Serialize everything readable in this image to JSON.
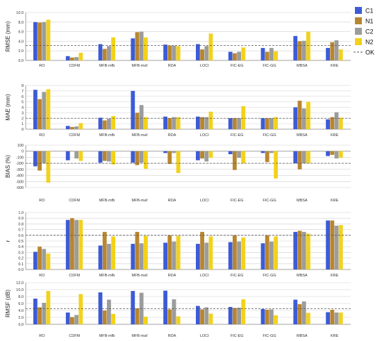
{
  "colors": {
    "C1": "#3d5bd6",
    "N1": "#b8862f",
    "C2": "#9c9c9c",
    "N2": "#f2d21a",
    "OK": "#555555",
    "grid": "#cfcfcf",
    "axis": "#888888"
  },
  "legend": {
    "items": [
      {
        "label": "C1",
        "key": "C1",
        "kind": "box"
      },
      {
        "label": "N1",
        "key": "N1",
        "kind": "box"
      },
      {
        "label": "C2",
        "key": "C2",
        "kind": "box"
      },
      {
        "label": "N2",
        "key": "N2",
        "kind": "box"
      },
      {
        "label": "OK",
        "key": "OK",
        "kind": "dash"
      }
    ]
  },
  "chart_data": [
    {
      "type": "bar",
      "ylabel": "RMSE (mm)",
      "ylim": [
        0,
        10
      ],
      "yticks": [
        0,
        2,
        4,
        6,
        8,
        10
      ],
      "ytick_labels": [
        "0.0",
        "2.0",
        "4.0",
        "6.0",
        "8.0",
        "10.0"
      ],
      "grid": true,
      "ok_line": 3.1,
      "categories": [
        "RO",
        "CDFM",
        "MFB-mfb",
        "MFB-maf",
        "RDA",
        "LOCI",
        "FIC-EG",
        "FIC-GG",
        "MBSA",
        "KRE"
      ],
      "series": [
        {
          "name": "C1",
          "values": [
            8.0,
            0.9,
            3.4,
            4.6,
            3.3,
            3.4,
            1.8,
            2.6,
            5.1,
            2.6
          ]
        },
        {
          "name": "N1",
          "values": [
            7.9,
            0.6,
            2.4,
            5.9,
            3.1,
            2.3,
            1.5,
            1.8,
            4.0,
            3.8
          ]
        },
        {
          "name": "C2",
          "values": [
            8.0,
            0.7,
            3.0,
            6.0,
            3.1,
            3.0,
            1.8,
            2.6,
            4.1,
            4.2
          ]
        },
        {
          "name": "N2",
          "values": [
            8.5,
            1.6,
            4.8,
            4.8,
            3.0,
            5.6,
            2.7,
            1.9,
            6.0,
            2.3
          ]
        }
      ]
    },
    {
      "type": "bar",
      "ylabel": "MAE (mm)",
      "ylim": [
        0,
        8
      ],
      "yticks": [
        0,
        1,
        2,
        3,
        4,
        5,
        6,
        7,
        8
      ],
      "ytick_labels": [
        "0",
        "1",
        "2",
        "3",
        "4",
        "5",
        "6",
        "7",
        "8"
      ],
      "grid": true,
      "ok_line": 2.0,
      "categories": [
        "RO",
        "CDFM",
        "MFB-mfb",
        "MFB-maf",
        "RDA",
        "LOCI",
        "FIC-EG",
        "FIC-GG",
        "MBSA",
        "KRE"
      ],
      "series": [
        {
          "name": "C1",
          "values": [
            7.2,
            0.6,
            2.1,
            7.0,
            2.3,
            2.3,
            2.0,
            2.0,
            4.0,
            1.8
          ]
        },
        {
          "name": "N1",
          "values": [
            5.5,
            0.4,
            1.6,
            3.0,
            2.0,
            2.2,
            2.0,
            2.0,
            5.2,
            2.2
          ]
        },
        {
          "name": "C2",
          "values": [
            6.8,
            0.5,
            1.9,
            4.4,
            2.2,
            2.2,
            2.0,
            2.0,
            3.8,
            3.1
          ]
        },
        {
          "name": "N2",
          "values": [
            7.3,
            1.1,
            2.4,
            2.2,
            2.2,
            3.2,
            4.2,
            2.2,
            5.0,
            2.1
          ]
        }
      ]
    },
    {
      "type": "bar",
      "ylabel": "BIAS (%)",
      "ylim": [
        -600,
        100
      ],
      "yticks": [
        100,
        0,
        -100,
        -200,
        -300,
        -400,
        -500,
        -600
      ],
      "ytick_labels": [
        "100",
        "0",
        "-100",
        "-200",
        "-300",
        "-400",
        "-500",
        "-600"
      ],
      "grid": true,
      "ok_line": -200,
      "categories": [
        "RO",
        "CDFM",
        "MFB-mfb",
        "MFB-maf",
        "RDA",
        "LOCI",
        "FIC-EG",
        "FIC-GG",
        "MBSA",
        "KRE"
      ],
      "series": [
        {
          "name": "C1",
          "values": [
            -250,
            -150,
            -190,
            -190,
            -30,
            -150,
            -50,
            -30,
            -200,
            -80
          ]
        },
        {
          "name": "N1",
          "values": [
            -320,
            -5,
            -160,
            -230,
            -210,
            -120,
            -310,
            -180,
            -300,
            -60
          ]
        },
        {
          "name": "C2",
          "values": [
            -200,
            -120,
            -170,
            -190,
            -30,
            -170,
            -110,
            -30,
            -200,
            -120
          ]
        },
        {
          "name": "N2",
          "values": [
            -520,
            -160,
            -220,
            -290,
            -360,
            -110,
            -200,
            -450,
            -200,
            -110
          ]
        }
      ]
    },
    {
      "type": "bar",
      "ylabel": "r",
      "ylim": [
        0,
        1.0
      ],
      "yticks": [
        0,
        0.1,
        0.2,
        0.3,
        0.4,
        0.5,
        0.6,
        0.7,
        0.8,
        0.9,
        1.0
      ],
      "ytick_labels": [
        "0.0",
        "0.1",
        "0.2",
        "0.3",
        "0.4",
        "0.5",
        "0.6",
        "0.7",
        "0.8",
        "0.9",
        "1.0"
      ],
      "grid": true,
      "ok_line": 0.6,
      "categories": [
        "RO",
        "CDFM",
        "MFB-mfb",
        "MFB-maf",
        "RDA",
        "LOCI",
        "FIC-EG",
        "FIC-GG",
        "MBSA",
        "KRE"
      ],
      "series": [
        {
          "name": "C1",
          "values": [
            0.31,
            0.87,
            0.42,
            0.45,
            0.47,
            0.45,
            0.48,
            0.46,
            0.66,
            0.86
          ]
        },
        {
          "name": "N1",
          "values": [
            0.4,
            0.9,
            0.66,
            0.66,
            0.6,
            0.66,
            0.6,
            0.6,
            0.68,
            0.86
          ]
        },
        {
          "name": "C2",
          "values": [
            0.36,
            0.87,
            0.45,
            0.46,
            0.49,
            0.47,
            0.49,
            0.49,
            0.66,
            0.77
          ]
        },
        {
          "name": "N2",
          "values": [
            0.28,
            0.87,
            0.58,
            0.59,
            0.59,
            0.58,
            0.56,
            0.58,
            0.63,
            0.78
          ]
        }
      ]
    },
    {
      "type": "bar",
      "ylabel": "RMSF (dB)",
      "ylim": [
        0,
        12
      ],
      "yticks": [
        0,
        2,
        4,
        6,
        8,
        10,
        12
      ],
      "ytick_labels": [
        "0.0",
        "2.0",
        "4.0",
        "6.0",
        "8.0",
        "10.0",
        "12.0"
      ],
      "grid": true,
      "ok_line": 4.5,
      "categories": [
        "RO",
        "CDFM",
        "MFB-mfb",
        "MFB-maf",
        "RDA",
        "LOCI",
        "FIC-EG",
        "FIC-GG",
        "MBSA",
        "KRE"
      ],
      "series": [
        {
          "name": "C1",
          "values": [
            7.4,
            3.4,
            9.2,
            9.6,
            9.7,
            5.3,
            5.0,
            4.4,
            7.1,
            3.5
          ]
        },
        {
          "name": "N1",
          "values": [
            4.9,
            2.1,
            4.0,
            4.6,
            4.3,
            4.3,
            4.7,
            4.2,
            5.8,
            4.2
          ]
        },
        {
          "name": "C2",
          "values": [
            6.2,
            2.7,
            7.1,
            9.1,
            7.2,
            4.9,
            4.8,
            4.3,
            6.6,
            3.4
          ]
        },
        {
          "name": "N2",
          "values": [
            9.6,
            8.7,
            3.0,
            2.2,
            2.3,
            3.1,
            7.2,
            2.6,
            3.3,
            3.4
          ]
        }
      ]
    }
  ]
}
